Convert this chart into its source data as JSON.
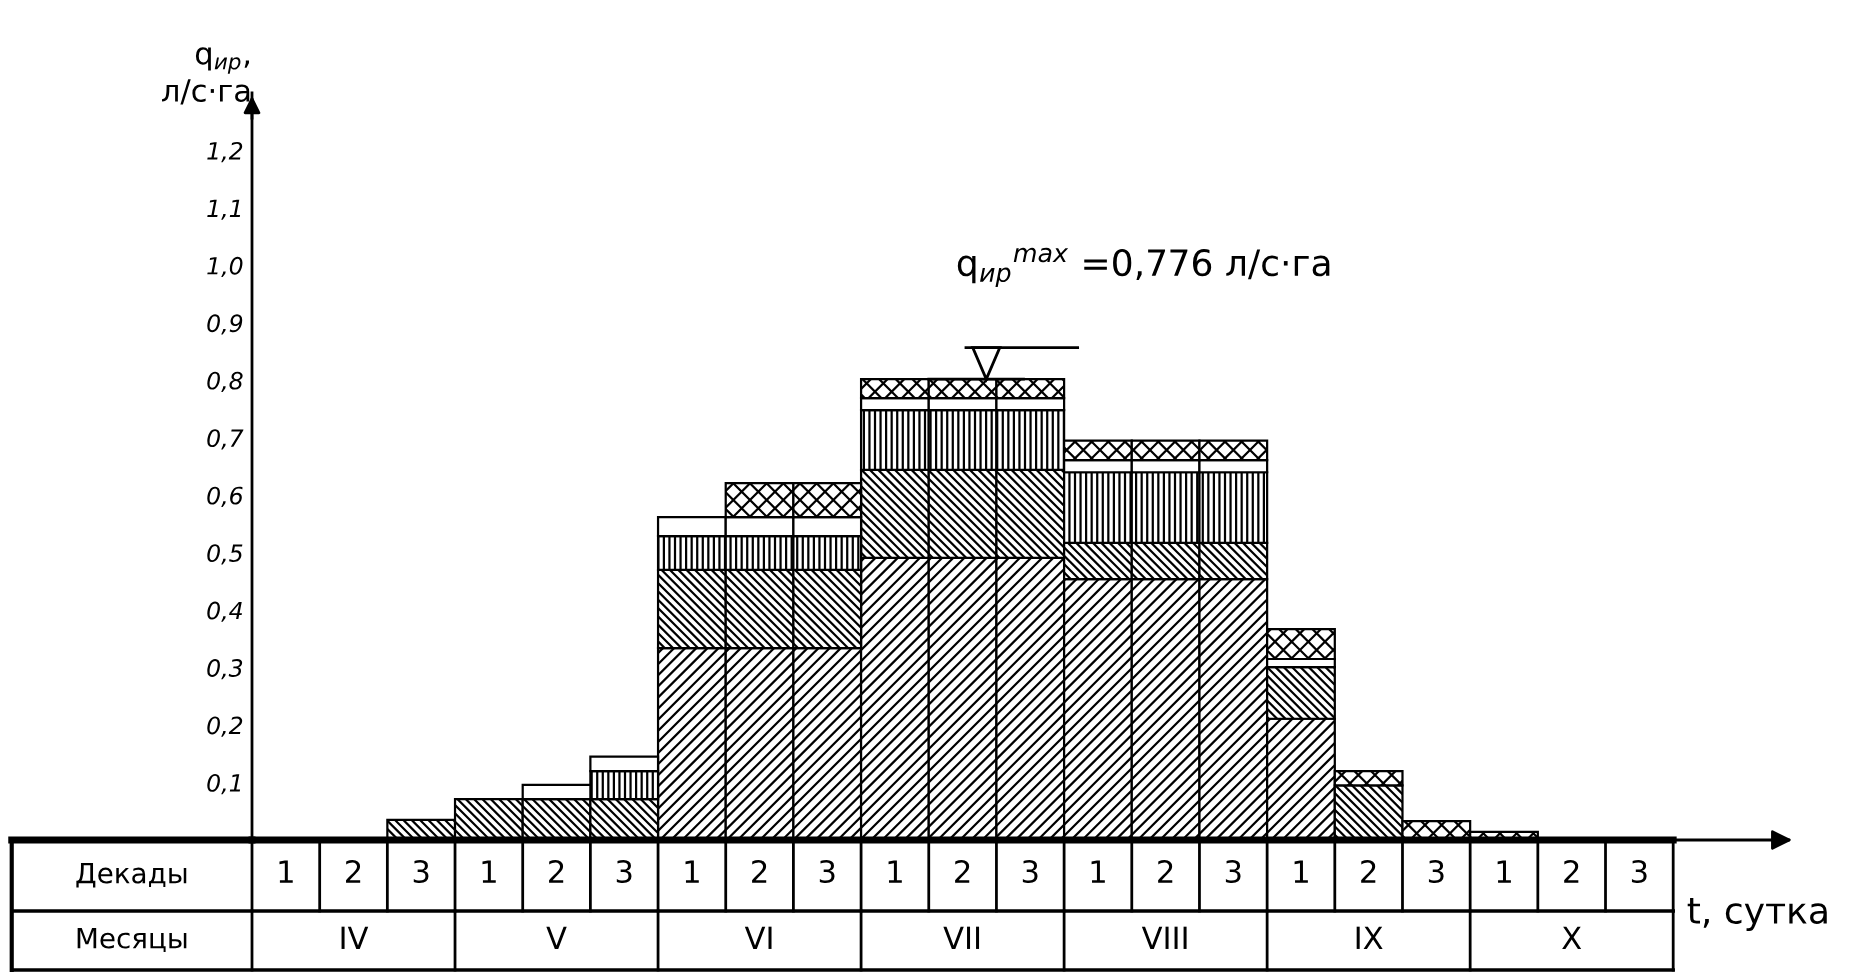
{
  "chart_data": {
    "type": "bar",
    "stacked": true,
    "categories": [
      "1",
      "2",
      "3",
      "1",
      "2",
      "3",
      "1",
      "2",
      "3",
      "1",
      "2",
      "3",
      "1",
      "2",
      "3",
      "1",
      "2",
      "3",
      "1",
      "2",
      "3"
    ],
    "series": [
      {
        "color": "#000000",
        "values": [
          null,
          null,
          null,
          null,
          null,
          null,
          0.334,
          0.334,
          0.334,
          0.491,
          0.491,
          0.491,
          0.454,
          0.454,
          0.454,
          0.211,
          null,
          null,
          null,
          null,
          null
        ]
      },
      {
        "color": "#000000",
        "values": [
          null,
          null,
          0.035,
          0.071,
          0.071,
          0.071,
          0.136,
          0.136,
          0.136,
          0.153,
          0.153,
          0.153,
          0.063,
          0.063,
          0.063,
          0.09,
          0.095,
          null,
          null,
          null,
          null
        ]
      },
      {
        "color": "#000000",
        "values": [
          null,
          null,
          null,
          null,
          null,
          0.049,
          0.059,
          0.059,
          0.059,
          0.104,
          0.104,
          0.104,
          0.123,
          0.123,
          0.123,
          null,
          null,
          null,
          null,
          null,
          null
        ]
      },
      {
        "color": "#ffffff",
        "values": [
          null,
          null,
          null,
          null,
          0.025,
          0.025,
          0.033,
          0.033,
          0.033,
          0.021,
          0.021,
          0.021,
          0.021,
          0.021,
          0.021,
          0.014,
          null,
          null,
          null,
          null,
          null
        ]
      },
      {
        "color": "#000000",
        "values": [
          null,
          null,
          null,
          null,
          null,
          null,
          null,
          0.059,
          0.059,
          0.033,
          0.033,
          0.033,
          0.034,
          0.034,
          0.034,
          0.052,
          0.025,
          0.033,
          0.014,
          null,
          null
        ]
      }
    ],
    "ylim": [
      0,
      1.3
    ],
    "yticks": [
      {
        "value": 0.1,
        "label": "0,1"
      },
      {
        "value": 0.2,
        "label": "0,2"
      },
      {
        "value": 0.3,
        "label": "0,3"
      },
      {
        "value": 0.4,
        "label": "0,4"
      },
      {
        "value": 0.5,
        "label": "0,5"
      },
      {
        "value": 0.6,
        "label": "0,6"
      },
      {
        "value": 0.7,
        "label": "0,7"
      },
      {
        "value": 0.8,
        "label": "0,8"
      },
      {
        "value": 0.9,
        "label": "0,9"
      },
      {
        "value": 1.0,
        "label": "1,0"
      },
      {
        "value": 1.1,
        "label": "1,1"
      },
      {
        "value": 1.2,
        "label": "1,2"
      }
    ],
    "ylabel": "q$_{ир}$,\nл/с·га",
    "xlabel": "t, сутка",
    "annotations": [
      "q$_{ир}$$^{max}$ =0,776 л/с·га",
      "Декады",
      "Месяцы",
      "IV",
      "V",
      "VI",
      "VII",
      "VIII",
      "IX",
      "X"
    ]
  }
}
